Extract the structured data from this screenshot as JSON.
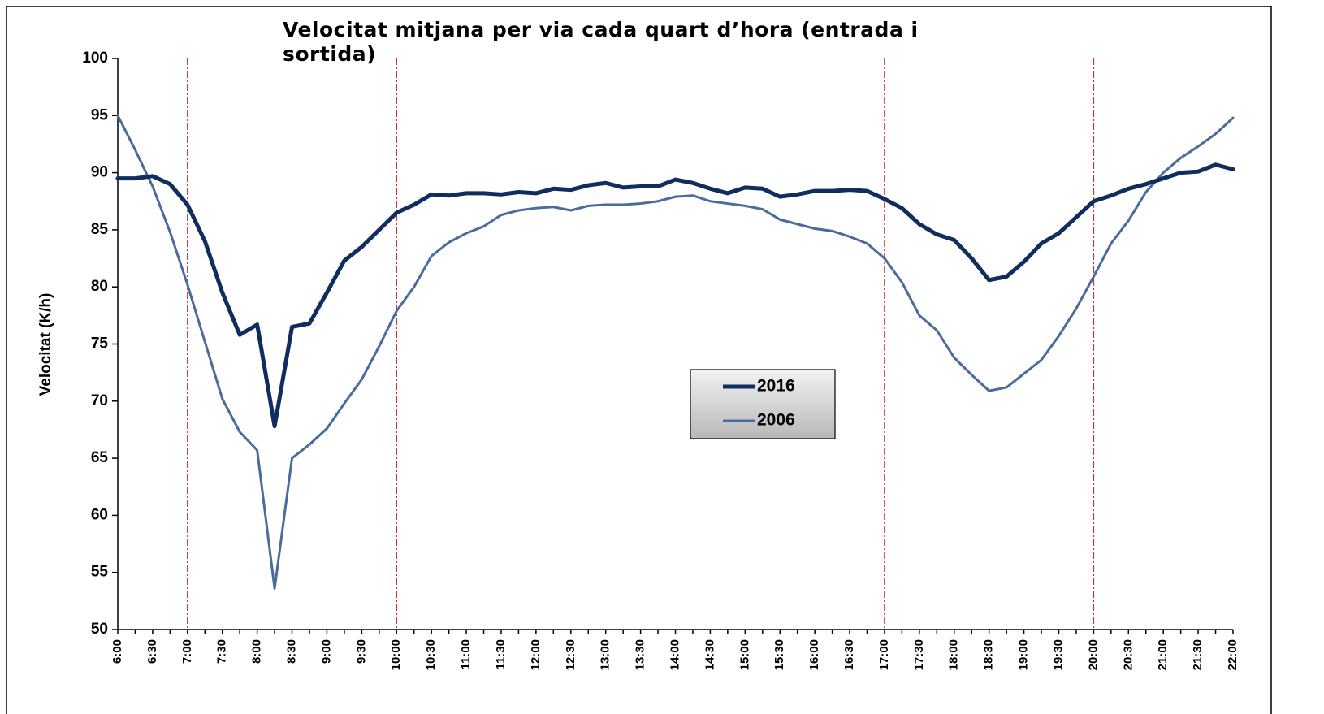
{
  "chart_data": {
    "type": "line",
    "title": "Velocitat mitjana per via cada quart d’hora (entrada i sortida)",
    "y_label": "Velocitat (K/h)",
    "categories": [
      "6:00",
      null,
      "6:30",
      null,
      "7:00",
      null,
      "7:30",
      null,
      "8:00",
      null,
      "8:30",
      null,
      "9:00",
      null,
      "9:30",
      null,
      "10:00",
      null,
      "10:30",
      null,
      "11:00",
      null,
      "11:30",
      null,
      "12:00",
      null,
      "12:30",
      null,
      "13:00",
      null,
      "13:30",
      null,
      "14:00",
      null,
      "14:30",
      null,
      "15:00",
      null,
      "15:30",
      null,
      "16:00",
      null,
      "16:30",
      null,
      "17:00",
      null,
      "17:30",
      null,
      "18:00",
      null,
      "18:30",
      null,
      "19:00",
      null,
      "19:30",
      null,
      "20:00",
      null,
      "20:30",
      null,
      "21:00",
      null,
      "21:30",
      null,
      "22:00"
    ],
    "series": [
      {
        "name": "2016",
        "color": "#0f2d5e",
        "width": 5,
        "values": [
          89.5,
          89.5,
          89.7,
          89,
          87.2,
          84,
          79.5,
          75.8,
          76.7,
          67.8,
          76.5,
          76.8,
          79.5,
          82.3,
          83.5,
          85,
          86.5,
          87.2,
          88.1,
          88,
          88.2,
          88.2,
          88.1,
          88.3,
          88.2,
          88.6,
          88.5,
          88.9,
          89.1,
          88.7,
          88.8,
          88.8,
          89.4,
          89.1,
          88.6,
          88.2,
          88.7,
          88.6,
          87.9,
          88.1,
          88.4,
          88.4,
          88.5,
          88.4,
          87.7,
          86.9,
          85.5,
          84.6,
          84.1,
          82.5,
          80.6,
          80.9,
          82.2,
          83.8,
          84.7,
          86.1,
          87.5,
          88,
          88.6,
          89,
          89.5,
          90,
          90.1,
          90.7,
          90.3
        ]
      },
      {
        "name": "2006",
        "color": "#4a6b9c",
        "width": 3,
        "values": [
          95,
          92,
          88.8,
          84.8,
          80.2,
          75.2,
          70.2,
          67.3,
          65.7,
          53.6,
          65,
          66.2,
          67.6,
          69.8,
          71.9,
          74.8,
          77.9,
          80,
          82.7,
          83.9,
          84.7,
          85.3,
          86.3,
          86.7,
          86.9,
          87,
          86.7,
          87.1,
          87.2,
          87.2,
          87.3,
          87.5,
          87.9,
          88,
          87.5,
          87.3,
          87.1,
          86.8,
          85.9,
          85.5,
          85.1,
          84.9,
          84.4,
          83.8,
          82.5,
          80.4,
          77.5,
          76.2,
          73.8,
          72.3,
          70.9,
          71.2,
          72.4,
          73.6,
          75.7,
          78.1,
          80.9,
          83.8,
          85.8,
          88.3,
          90,
          91.3,
          92.3,
          93.4,
          94.8
        ]
      }
    ],
    "reference_lines": [
      "7:00",
      "10:00",
      "17:00",
      "20:00"
    ],
    "reference_color": "#c0393b",
    "ylim": [
      50,
      100
    ],
    "yticks": [
      50,
      55,
      60,
      65,
      70,
      75,
      80,
      85,
      90,
      95,
      100
    ],
    "grid": false
  }
}
